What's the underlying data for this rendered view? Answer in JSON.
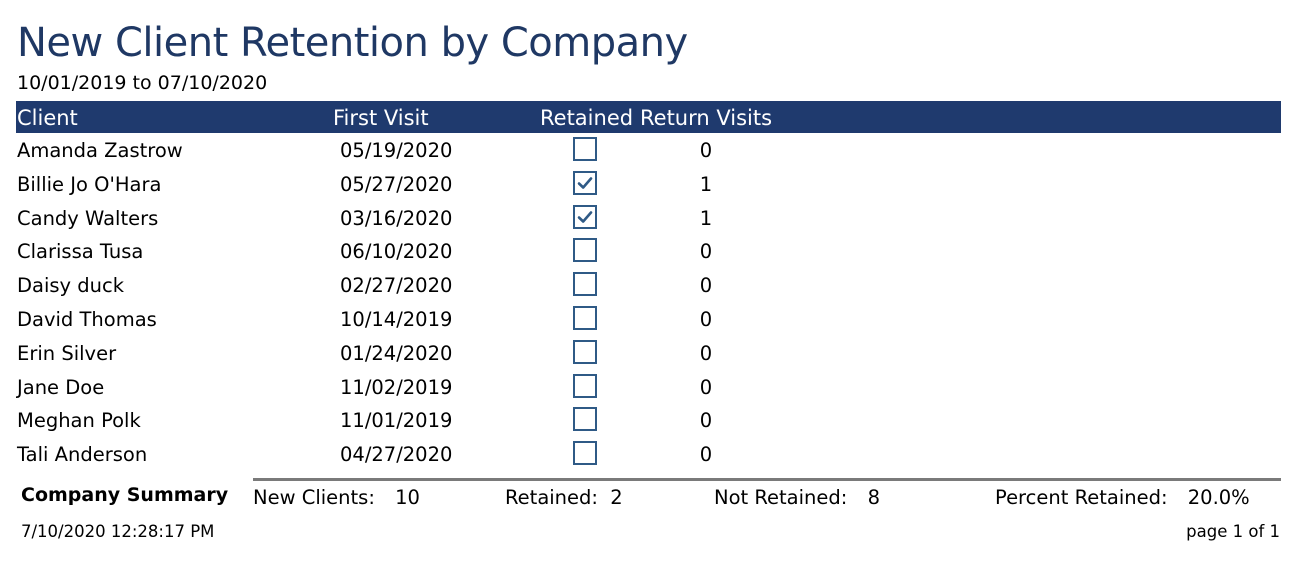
{
  "report": {
    "title": "New Client Retention by Company",
    "date_range": "10/01/2019 to 07/10/2020"
  },
  "columns": {
    "client": "Client",
    "first_visit": "First Visit",
    "retained": "Retained",
    "return_visits": "Return Visits"
  },
  "rows": [
    {
      "client": "Amanda Zastrow",
      "first_visit": "05/19/2020",
      "retained": false,
      "return_visits": "0"
    },
    {
      "client": "Billie Jo O'Hara",
      "first_visit": "05/27/2020",
      "retained": true,
      "return_visits": "1"
    },
    {
      "client": "Candy Walters",
      "first_visit": "03/16/2020",
      "retained": true,
      "return_visits": "1"
    },
    {
      "client": "Clarissa Tusa",
      "first_visit": "06/10/2020",
      "retained": false,
      "return_visits": "0"
    },
    {
      "client": "Daisy duck",
      "first_visit": "02/27/2020",
      "retained": false,
      "return_visits": "0"
    },
    {
      "client": "David Thomas",
      "first_visit": "10/14/2019",
      "retained": false,
      "return_visits": "0"
    },
    {
      "client": "Erin Silver",
      "first_visit": "01/24/2020",
      "retained": false,
      "return_visits": "0"
    },
    {
      "client": "Jane Doe",
      "first_visit": "11/02/2019",
      "retained": false,
      "return_visits": "0"
    },
    {
      "client": "Meghan Polk",
      "first_visit": "11/01/2019",
      "retained": false,
      "return_visits": "0"
    },
    {
      "client": "Tali Anderson",
      "first_visit": "04/27/2020",
      "retained": false,
      "return_visits": "0"
    }
  ],
  "summary": {
    "label": "Company Summary",
    "new_clients_label": "New Clients:",
    "new_clients": "10",
    "retained_label": "Retained:",
    "retained": "2",
    "not_retained_label": "Not Retained:",
    "not_retained": "8",
    "percent_label": "Percent Retained:",
    "percent": "20.0%"
  },
  "footer": {
    "timestamp": "7/10/2020 12:28:17 PM",
    "page": "page 1 of 1"
  },
  "colors": {
    "title": "#1f3864",
    "header_bar": "#1f3a6e",
    "checkbox_border": "#2f5a86"
  },
  "icons": {
    "checked": "checkmark-icon"
  }
}
